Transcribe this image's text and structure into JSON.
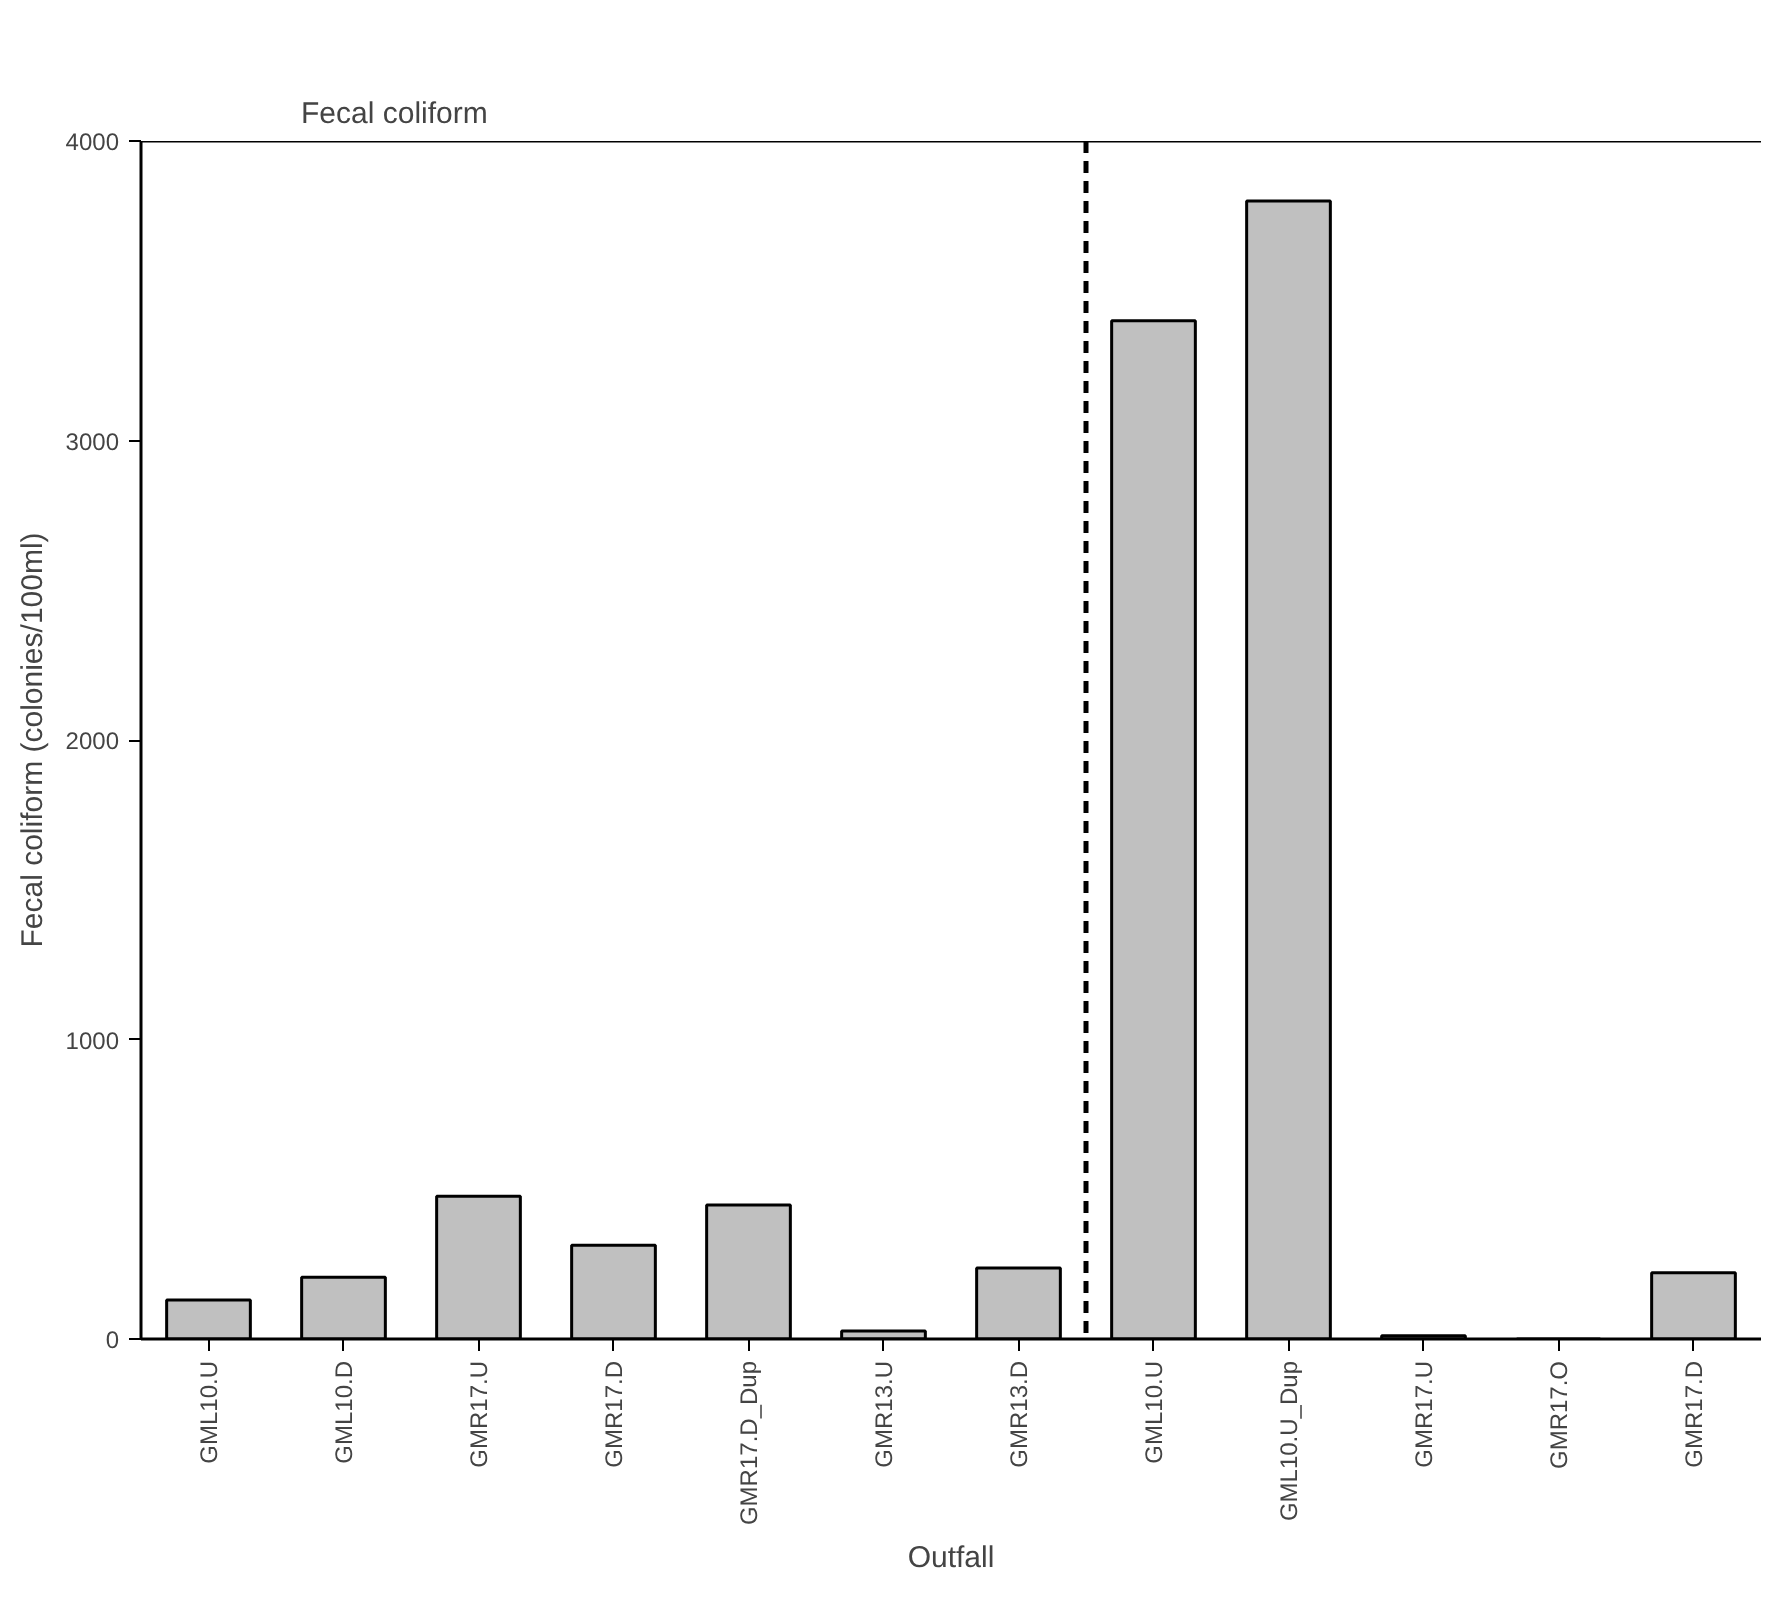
{
  "chart_data": {
    "type": "bar",
    "title": "Fecal coliform",
    "xlabel": "Outfall",
    "ylabel": "Fecal coliform (colonies/100ml)",
    "categories": [
      "GML10.U",
      "GML10.D",
      "GMR17.U",
      "GMR17.D",
      "GMR17.D_Dup",
      "GMR13.U",
      "GMR13.D",
      "GML10.U",
      "GML10.U_Dup",
      "GMR17.U",
      "GMR17.O",
      "GMR17.D"
    ],
    "values": [
      130,
      206,
      477,
      313,
      447,
      27,
      237,
      3400,
      3800,
      11,
      0,
      221
    ],
    "color": "#c0c0c0",
    "ylim": [
      0,
      4000
    ],
    "yticks": [
      0,
      1000,
      2000,
      3000,
      4000
    ],
    "grid": false
  }
}
